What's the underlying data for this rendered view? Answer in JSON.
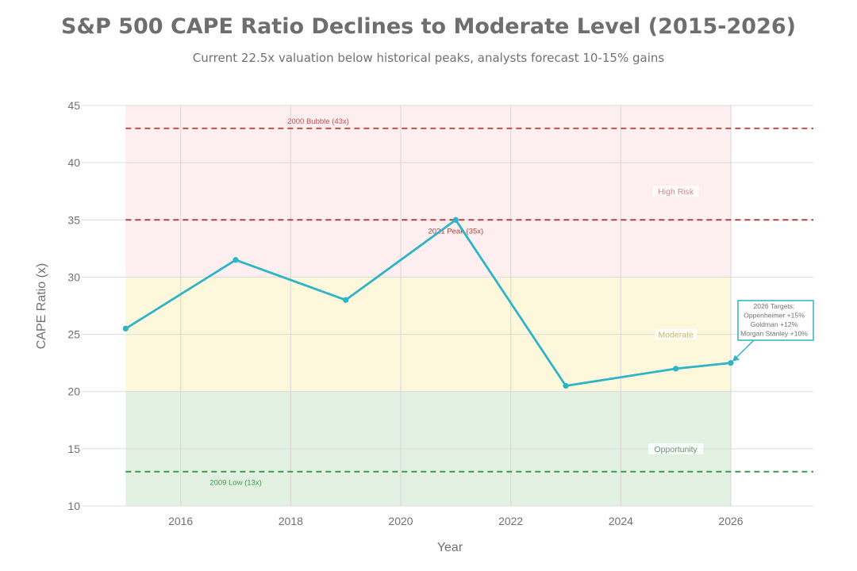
{
  "header": {
    "title": "S&P 500 CAPE Ratio Declines to Moderate Level (2015-2026)",
    "subtitle": "Current 22.5x valuation below historical peaks, analysts forecast 10-15% gains"
  },
  "chart_data": {
    "type": "line",
    "title": "S&P 500 CAPE Ratio Declines to Moderate Level (2015-2026)",
    "subtitle": "Current 22.5x valuation below historical peaks, analysts forecast 10-15% gains",
    "xlabel": "Year",
    "ylabel": "CAPE Ratio (x)",
    "xlim": [
      2014,
      2027.5
    ],
    "ylim": [
      10,
      45
    ],
    "xticks": [
      2016,
      2018,
      2020,
      2022,
      2024,
      2026
    ],
    "yticks": [
      10,
      15,
      20,
      25,
      30,
      35,
      40,
      45
    ],
    "grid": true,
    "series": [
      {
        "name": "CAPE Ratio",
        "color": "#2fb3c6",
        "x": [
          2015,
          2017,
          2019,
          2021,
          2023,
          2025,
          2026
        ],
        "values": [
          25.5,
          31.5,
          28,
          35,
          20.5,
          22,
          22.5
        ]
      }
    ],
    "zones": [
      {
        "label": "Opportunity",
        "from": 10,
        "to": 20,
        "color": "#e3f1e3",
        "text_color": "#5a9a6e"
      },
      {
        "label": "Moderate",
        "from": 20,
        "to": 30,
        "color": "#fdf7dc",
        "text_color": "#c9b870"
      },
      {
        "label": "High Risk",
        "from": 30,
        "to": 45,
        "color": "#fdeef0",
        "text_color": "#d9868c"
      }
    ],
    "reference_lines": [
      {
        "label": "2000 Bubble (43x)",
        "value": 43,
        "color": "#c0504d"
      },
      {
        "label": "2021 Peak (35x)",
        "value": 35,
        "color": "#a94442"
      },
      {
        "label": "2009 Low (13x)",
        "value": 13,
        "color": "#3a9a4e"
      }
    ],
    "annotation": {
      "target_x": 2026,
      "target_y": 22.5,
      "lines": [
        "2026 Targets:",
        "Oppenheimer +15%",
        "Goldman +12%",
        "Morgan Stanley +10%"
      ],
      "border_color": "#2fb3c6"
    }
  }
}
